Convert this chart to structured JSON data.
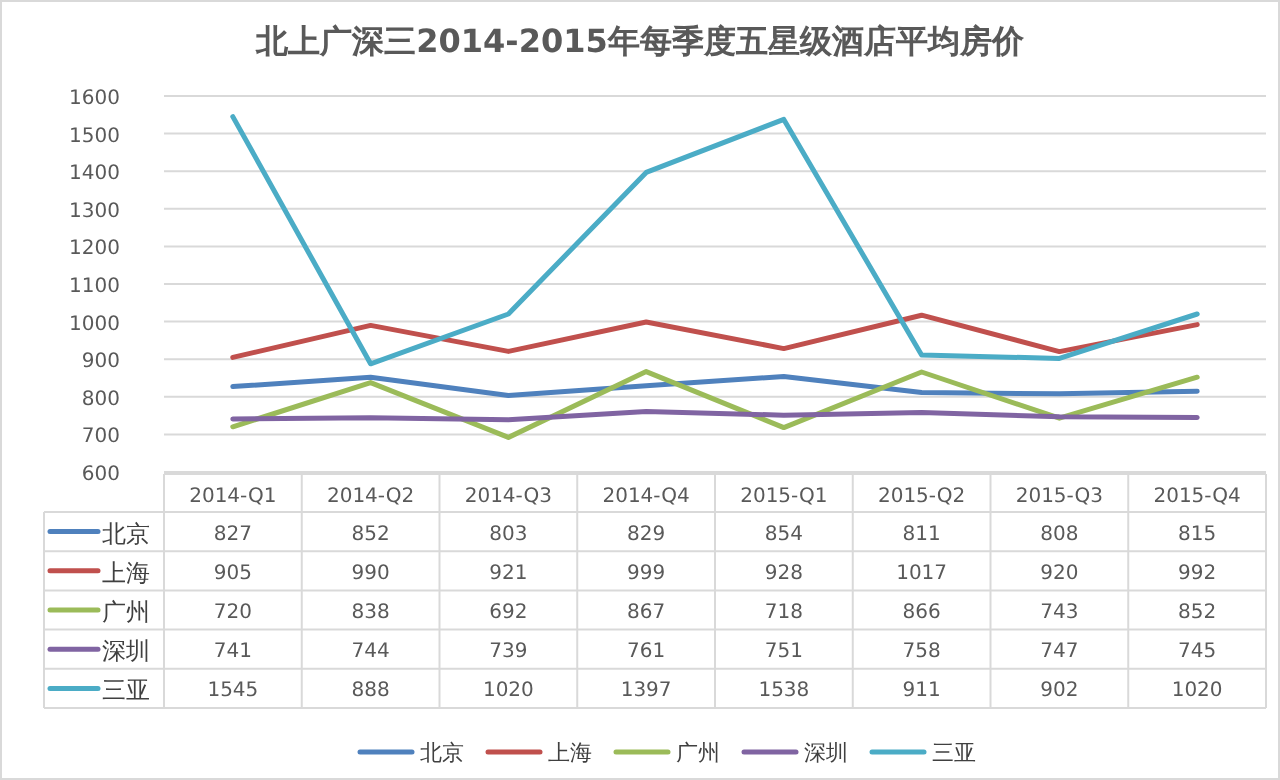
{
  "chart_data": {
    "type": "line",
    "title": "北上广深三2014-2015年每季度五星级酒店平均房价",
    "categories": [
      "2014-Q1",
      "2014-Q2",
      "2014-Q3",
      "2014-Q4",
      "2015-Q1",
      "2015-Q2",
      "2015-Q3",
      "2015-Q4"
    ],
    "series": [
      {
        "name": "北京",
        "color": "#4f81bd",
        "values": [
          827,
          852,
          803,
          829,
          854,
          811,
          808,
          815
        ]
      },
      {
        "name": "上海",
        "color": "#c0504d",
        "values": [
          905,
          990,
          921,
          999,
          928,
          1017,
          920,
          992
        ]
      },
      {
        "name": "广州",
        "color": "#9bbb59",
        "values": [
          720,
          838,
          692,
          867,
          718,
          866,
          743,
          852
        ]
      },
      {
        "name": "深圳",
        "color": "#8064a2",
        "values": [
          741,
          744,
          739,
          761,
          751,
          758,
          747,
          745
        ]
      },
      {
        "name": "三亚",
        "color": "#4bacc6",
        "values": [
          1545,
          888,
          1020,
          1397,
          1538,
          911,
          902,
          1020
        ]
      }
    ],
    "ylim": [
      600,
      1600
    ],
    "yticks": [
      600,
      700,
      800,
      900,
      1000,
      1100,
      1200,
      1300,
      1400,
      1500,
      1600
    ],
    "grid": "y",
    "legend": "bottom",
    "data_labels": true,
    "marker": "none",
    "line_style": "solid"
  }
}
